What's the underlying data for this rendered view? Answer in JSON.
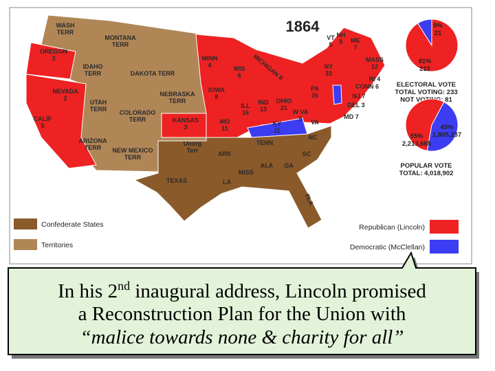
{
  "map": {
    "title": "1864",
    "labels": [
      {
        "lines": [
          "WASH",
          "TERR"
        ]
      },
      {
        "lines": [
          "MONTANA",
          "TERR"
        ]
      },
      {
        "lines": [
          "OREGON",
          "3"
        ]
      },
      {
        "lines": [
          "IDAHO",
          "TERR"
        ]
      },
      {
        "lines": [
          "DAKOTA TERR"
        ]
      },
      {
        "lines": [
          "NEVADA",
          "2"
        ]
      },
      {
        "lines": [
          "UTAH",
          "TERR"
        ]
      },
      {
        "lines": [
          "NEBRASKA",
          "TERR"
        ]
      },
      {
        "lines": [
          "CALIF",
          "5"
        ]
      },
      {
        "lines": [
          "COLORADO",
          "TERR"
        ]
      },
      {
        "lines": [
          "KANSAS",
          "3"
        ]
      },
      {
        "lines": [
          "ARIZONA",
          "TERR"
        ]
      },
      {
        "lines": [
          "NEW MEXICO",
          "TERR"
        ]
      },
      {
        "lines": [
          "Unorg",
          "Terr"
        ]
      },
      {
        "lines": [
          "TEXAS"
        ]
      },
      {
        "lines": [
          "MINN",
          "4"
        ]
      },
      {
        "lines": [
          "WIS",
          "8"
        ]
      },
      {
        "lines": [
          "MICHIGAN 8"
        ]
      },
      {
        "lines": [
          "IOWA",
          "8"
        ]
      },
      {
        "lines": [
          "ILL",
          "16"
        ]
      },
      {
        "lines": [
          "IND",
          "13"
        ]
      },
      {
        "lines": [
          "OHIO",
          "21"
        ]
      },
      {
        "lines": [
          "MO",
          "11"
        ]
      },
      {
        "lines": [
          "KY",
          "11"
        ]
      },
      {
        "lines": [
          "W VA",
          "5"
        ]
      },
      {
        "lines": [
          "PA",
          "26"
        ]
      },
      {
        "lines": [
          "NY",
          "33"
        ]
      },
      {
        "lines": [
          "VT",
          "5"
        ]
      },
      {
        "lines": [
          "NH",
          "5"
        ]
      },
      {
        "lines": [
          "ME",
          "7"
        ]
      },
      {
        "lines": [
          "MASS",
          "12"
        ]
      },
      {
        "lines": [
          "RI 4"
        ]
      },
      {
        "lines": [
          "CONN 6"
        ]
      },
      {
        "lines": [
          "NJ 7"
        ]
      },
      {
        "lines": [
          "DEL 3"
        ]
      },
      {
        "lines": [
          "MD 7"
        ]
      },
      {
        "lines": [
          "VA"
        ]
      },
      {
        "lines": [
          "TENN"
        ]
      },
      {
        "lines": [
          "NC"
        ]
      },
      {
        "lines": [
          "ARK"
        ]
      },
      {
        "lines": [
          "SC"
        ]
      },
      {
        "lines": [
          "MISS"
        ]
      },
      {
        "lines": [
          "ALA"
        ]
      },
      {
        "lines": [
          "GA"
        ]
      },
      {
        "lines": [
          "LA"
        ]
      },
      {
        "lines": [
          "FLA"
        ]
      }
    ],
    "electoral_pie": {
      "slices": [
        {
          "value": 91,
          "label": "91%",
          "votes": "212",
          "color": "#ee2222"
        },
        {
          "value": 9,
          "label": "9%",
          "votes": "21",
          "color": "#3c3cf2"
        }
      ],
      "heading": "ELECTORAL VOTE",
      "lines": [
        "TOTAL VOTING: 233",
        "NOT VOTING: 81"
      ]
    },
    "popular_pie": {
      "slices": [
        {
          "value": 55,
          "label": "55%",
          "votes": "2,213,665",
          "color": "#ee2222"
        },
        {
          "value": 45,
          "label": "45%",
          "votes": "1,805,237",
          "color": "#3c3cf2"
        }
      ],
      "heading": "POPULAR VOTE",
      "lines": [
        "TOTAL: 4,018,902"
      ]
    },
    "legend": {
      "confederate": "Confederate States",
      "territories": "Territories",
      "republican": "Republican (Lincoln)",
      "democratic": "Democratic (McClellan)"
    }
  },
  "caption": {
    "line1": [
      "In his 2",
      "nd",
      " inaugural address, Lincoln promised"
    ],
    "line2": "a Reconstruction Plan for the Union with",
    "line3": "“malice towards none & charity for all”"
  }
}
